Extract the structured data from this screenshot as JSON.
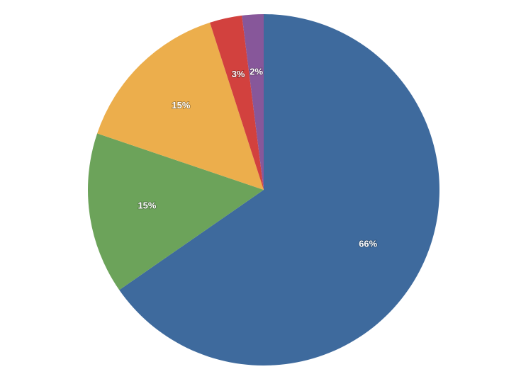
{
  "chart_data": {
    "type": "pie",
    "values": [
      66,
      15,
      15,
      3,
      2
    ],
    "value_labels": [
      "66%",
      "15%",
      "15%",
      "3%",
      "2%"
    ],
    "colors": [
      "#3e6a9d",
      "#6ca35a",
      "#ecae4c",
      "#d2413e",
      "#87579a"
    ]
  }
}
